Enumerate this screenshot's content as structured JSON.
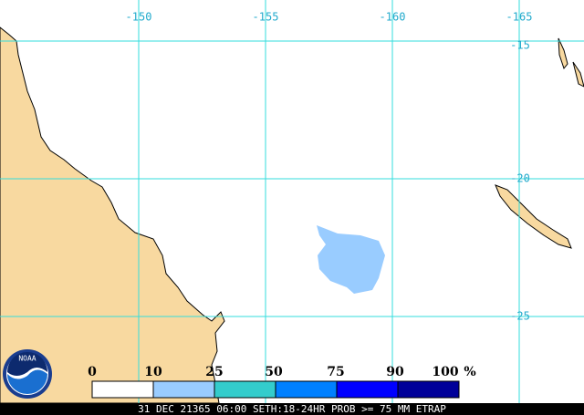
{
  "map": {
    "longitude_labels": [
      "-150",
      "-155",
      "-160",
      "-165"
    ],
    "latitude_labels": [
      "-15",
      "-20",
      "-25"
    ]
  },
  "legend": {
    "labels": [
      "0",
      "10",
      "25",
      "50",
      "75",
      "90",
      "100"
    ],
    "unit": "%"
  },
  "footer": "31 DEC 21365 06:00 SETH:18-24HR PROB >= 75 MM ETRAP"
}
